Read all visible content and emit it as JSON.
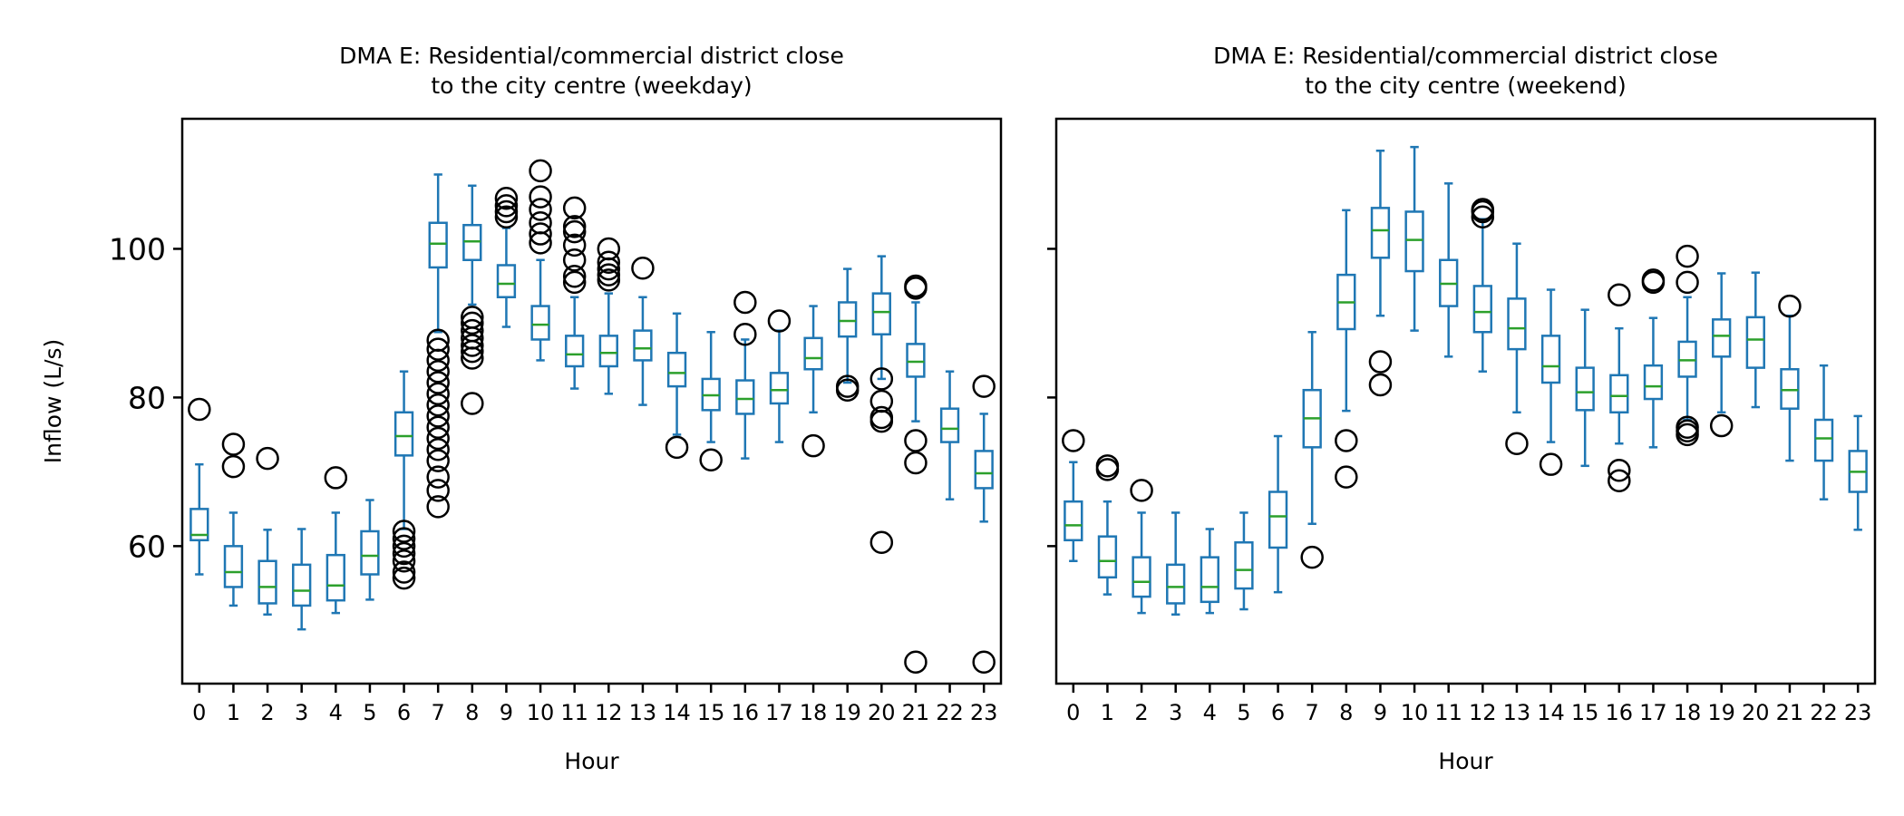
{
  "chart_data": [
    {
      "type": "box",
      "title_line1": "DMA E: Residential/commercial district close",
      "title_line2": "to the city centre (weekday)",
      "xlabel": "Hour",
      "ylabel": "Inflow (L/s)",
      "ylim": [
        41.5,
        117.5
      ],
      "yticks": [
        60,
        80,
        100
      ],
      "categories": [
        "0",
        "1",
        "2",
        "3",
        "4",
        "5",
        "6",
        "7",
        "8",
        "9",
        "10",
        "11",
        "12",
        "13",
        "14",
        "15",
        "16",
        "17",
        "18",
        "19",
        "20",
        "21",
        "22",
        "23"
      ],
      "boxes": [
        {
          "whislo": 56.2,
          "q1": 60.8,
          "med": 61.5,
          "q3": 65,
          "whishi": 71,
          "fliers": [
            78.4
          ]
        },
        {
          "whislo": 52,
          "q1": 54.5,
          "med": 56.5,
          "q3": 60,
          "whishi": 64.5,
          "fliers": [
            70.7,
            73.7
          ]
        },
        {
          "whislo": 50.8,
          "q1": 52.3,
          "med": 54.5,
          "q3": 58,
          "whishi": 62.2,
          "fliers": [
            71.8
          ]
        },
        {
          "whislo": 48.8,
          "q1": 52,
          "med": 54,
          "q3": 57.5,
          "whishi": 62.3,
          "fliers": []
        },
        {
          "whislo": 51,
          "q1": 52.7,
          "med": 54.7,
          "q3": 58.8,
          "whishi": 64.5,
          "fliers": [
            69.2
          ]
        },
        {
          "whislo": 52.8,
          "q1": 56.2,
          "med": 58.7,
          "q3": 62,
          "whishi": 66.2,
          "fliers": []
        },
        {
          "whislo": 62.3,
          "q1": 72.2,
          "med": 74.8,
          "q3": 78,
          "whishi": 83.5,
          "fliers": [
            55.7,
            56.5,
            58,
            59,
            60,
            61,
            62
          ]
        },
        {
          "whislo": 88.8,
          "q1": 97.5,
          "med": 100.7,
          "q3": 103.5,
          "whishi": 110,
          "fliers": [
            65.3,
            67.5,
            69.3,
            71.5,
            73,
            74.5,
            76,
            77.5,
            79,
            80.5,
            82,
            83.5,
            85,
            86.5,
            87.7
          ]
        },
        {
          "whislo": 92.5,
          "q1": 98.5,
          "med": 101,
          "q3": 103.2,
          "whishi": 108.5,
          "fliers": [
            79.2,
            85.3,
            86.2,
            87,
            88,
            89,
            90,
            90.8
          ]
        },
        {
          "whislo": 89.5,
          "q1": 93.5,
          "med": 95.3,
          "q3": 97.8,
          "whishi": 102.8,
          "fliers": [
            104.3,
            105,
            105.8,
            106.8
          ]
        },
        {
          "whislo": 85,
          "q1": 87.8,
          "med": 89.8,
          "q3": 92.3,
          "whishi": 98.5,
          "fliers": [
            100.8,
            102,
            103.5,
            105.3,
            107,
            110.5
          ]
        },
        {
          "whislo": 81.2,
          "q1": 84.2,
          "med": 85.8,
          "q3": 88.3,
          "whishi": 93.5,
          "fliers": [
            95.5,
            96.3,
            98.5,
            100.5,
            102.3,
            103,
            105.5
          ]
        },
        {
          "whislo": 80.5,
          "q1": 84.2,
          "med": 86,
          "q3": 88.3,
          "whishi": 94,
          "fliers": [
            95.8,
            96.5,
            97.3,
            98.2,
            100
          ]
        },
        {
          "whislo": 79,
          "q1": 85,
          "med": 86.6,
          "q3": 89,
          "whishi": 93.5,
          "fliers": [
            97.4
          ]
        },
        {
          "whislo": 75,
          "q1": 81.5,
          "med": 83.3,
          "q3": 86,
          "whishi": 91.3,
          "fliers": [
            73.3
          ]
        },
        {
          "whislo": 74,
          "q1": 78.3,
          "med": 80.3,
          "q3": 82.5,
          "whishi": 88.8,
          "fliers": [
            71.6
          ]
        },
        {
          "whislo": 71.8,
          "q1": 77.8,
          "med": 79.8,
          "q3": 82.3,
          "whishi": 87.8,
          "fliers": [
            88.5,
            92.8
          ]
        },
        {
          "whislo": 74,
          "q1": 79.2,
          "med": 81,
          "q3": 83.3,
          "whishi": 89,
          "fliers": [
            90.3
          ]
        },
        {
          "whislo": 78,
          "q1": 83.8,
          "med": 85.3,
          "q3": 88,
          "whishi": 92.3,
          "fliers": [
            73.5
          ]
        },
        {
          "whislo": 82,
          "q1": 88.2,
          "med": 90.3,
          "q3": 92.8,
          "whishi": 97.3,
          "fliers": [
            81,
            81.5
          ]
        },
        {
          "whislo": 82.5,
          "q1": 88.5,
          "med": 91.5,
          "q3": 94,
          "whishi": 99,
          "fliers": [
            60.5,
            76.8,
            77.3,
            79.5,
            82.5
          ]
        },
        {
          "whislo": 76.8,
          "q1": 82.8,
          "med": 84.8,
          "q3": 87.2,
          "whishi": 92.8,
          "fliers": [
            44.4,
            71.2,
            74.2,
            94.7,
            95
          ]
        },
        {
          "whislo": 66.3,
          "q1": 74,
          "med": 75.8,
          "q3": 78.5,
          "whishi": 83.5,
          "fliers": []
        },
        {
          "whislo": 63.3,
          "q1": 67.8,
          "med": 69.8,
          "q3": 72.8,
          "whishi": 77.8,
          "fliers": [
            44.4,
            81.5
          ]
        }
      ]
    },
    {
      "type": "box",
      "title_line1": "DMA E: Residential/commercial district close",
      "title_line2": "to the city centre (weekend)",
      "xlabel": "Hour",
      "ylabel": "",
      "ylim": [
        41.5,
        117.5
      ],
      "yticks": [
        60,
        80,
        100
      ],
      "categories": [
        "0",
        "1",
        "2",
        "3",
        "4",
        "5",
        "6",
        "7",
        "8",
        "9",
        "10",
        "11",
        "12",
        "13",
        "14",
        "15",
        "16",
        "17",
        "18",
        "19",
        "20",
        "21",
        "22",
        "23"
      ],
      "boxes": [
        {
          "whislo": 58,
          "q1": 60.8,
          "med": 62.8,
          "q3": 66,
          "whishi": 71.3,
          "fliers": [
            74.2
          ]
        },
        {
          "whislo": 53.5,
          "q1": 55.8,
          "med": 58,
          "q3": 61.3,
          "whishi": 66,
          "fliers": [
            70.3,
            70.8
          ]
        },
        {
          "whislo": 51,
          "q1": 53.2,
          "med": 55.2,
          "q3": 58.5,
          "whishi": 64.5,
          "fliers": [
            67.5
          ]
        },
        {
          "whislo": 50.8,
          "q1": 52.3,
          "med": 54.5,
          "q3": 57.5,
          "whishi": 64.5,
          "fliers": []
        },
        {
          "whislo": 51,
          "q1": 52.5,
          "med": 54.5,
          "q3": 58.5,
          "whishi": 62.3,
          "fliers": []
        },
        {
          "whislo": 51.5,
          "q1": 54.3,
          "med": 56.8,
          "q3": 60.5,
          "whishi": 64.5,
          "fliers": []
        },
        {
          "whislo": 53.8,
          "q1": 59.8,
          "med": 64,
          "q3": 67.3,
          "whishi": 74.8,
          "fliers": []
        },
        {
          "whislo": 63,
          "q1": 73.3,
          "med": 77.2,
          "q3": 81,
          "whishi": 88.8,
          "fliers": [
            58.5
          ]
        },
        {
          "whislo": 78.2,
          "q1": 89.2,
          "med": 92.8,
          "q3": 96.5,
          "whishi": 105.2,
          "fliers": [
            69.3,
            74.2
          ]
        },
        {
          "whislo": 91,
          "q1": 98.8,
          "med": 102.5,
          "q3": 105.5,
          "whishi": 113.2,
          "fliers": [
            81.7,
            84.8
          ]
        },
        {
          "whislo": 89,
          "q1": 97,
          "med": 101.2,
          "q3": 105,
          "whishi": 113.7,
          "fliers": []
        },
        {
          "whislo": 85.5,
          "q1": 92.3,
          "med": 95.3,
          "q3": 98.5,
          "whishi": 108.8,
          "fliers": []
        },
        {
          "whislo": 83.5,
          "q1": 88.8,
          "med": 91.5,
          "q3": 95,
          "whishi": 104,
          "fliers": [
            104.3,
            105,
            105.3
          ]
        },
        {
          "whislo": 78,
          "q1": 86.5,
          "med": 89.3,
          "q3": 93.3,
          "whishi": 100.7,
          "fliers": [
            73.8
          ]
        },
        {
          "whislo": 74,
          "q1": 82,
          "med": 84.2,
          "q3": 88.3,
          "whishi": 94.5,
          "fliers": [
            71
          ]
        },
        {
          "whislo": 70.8,
          "q1": 78.3,
          "med": 80.7,
          "q3": 84,
          "whishi": 91.8,
          "fliers": []
        },
        {
          "whislo": 73.8,
          "q1": 78,
          "med": 80.2,
          "q3": 83,
          "whishi": 89.3,
          "fliers": [
            68.8,
            70.2,
            93.8
          ]
        },
        {
          "whislo": 73.3,
          "q1": 79.8,
          "med": 81.5,
          "q3": 84.3,
          "whishi": 90.7,
          "fliers": [
            95.5,
            95.8
          ]
        },
        {
          "whislo": 77,
          "q1": 82.8,
          "med": 85,
          "q3": 87.5,
          "whishi": 93.5,
          "fliers": [
            75,
            75.5,
            76,
            95.5,
            99
          ]
        },
        {
          "whislo": 78,
          "q1": 85.5,
          "med": 88.3,
          "q3": 90.5,
          "whishi": 96.7,
          "fliers": [
            76.2
          ]
        },
        {
          "whislo": 78.7,
          "q1": 84,
          "med": 87.8,
          "q3": 90.8,
          "whishi": 96.8,
          "fliers": []
        },
        {
          "whislo": 71.5,
          "q1": 78.5,
          "med": 81,
          "q3": 83.8,
          "whishi": 91,
          "fliers": [
            92.3
          ]
        },
        {
          "whislo": 66.3,
          "q1": 71.5,
          "med": 74.5,
          "q3": 77,
          "whishi": 84.3,
          "fliers": []
        },
        {
          "whislo": 62.2,
          "q1": 67.3,
          "med": 70,
          "q3": 72.8,
          "whishi": 77.5,
          "fliers": []
        }
      ]
    }
  ],
  "colors": {
    "box": "#1f77b4",
    "median": "#2ca02c",
    "flier": "#000000"
  }
}
